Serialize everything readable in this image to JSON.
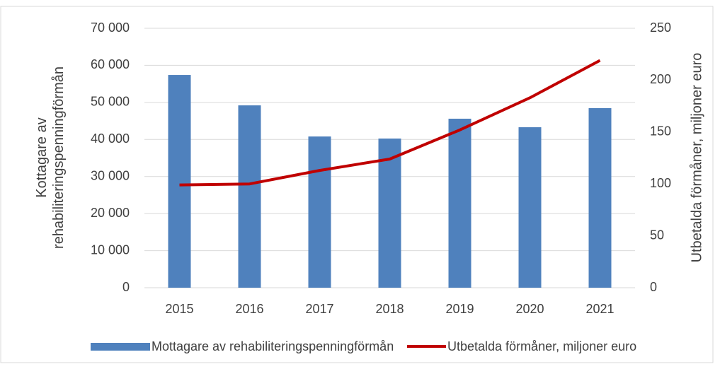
{
  "chart_data": {
    "type": "bar",
    "categories": [
      "2015",
      "2016",
      "2017",
      "2018",
      "2019",
      "2020",
      "2021"
    ],
    "series": [
      {
        "name": "Mottagare av rehabiliteringspenningförmån",
        "type": "bar",
        "color": "#4f81bd",
        "values": [
          57400,
          49200,
          40800,
          40250,
          45600,
          43300,
          48450
        ]
      },
      {
        "name": "Utbetalda förmåner, miljoner euro",
        "type": "line",
        "axis": "y2",
        "color": "#c00000",
        "values": [
          99,
          100,
          113,
          124,
          152,
          183,
          219
        ]
      }
    ],
    "ylabel": [
      "Kottagare av",
      "rehabiliteringspenningförmån"
    ],
    "y2label": "Utbetalda förmåner, miljoner euro",
    "ylim": [
      0,
      70000
    ],
    "yticks": [
      0,
      {
        "value": 10000,
        "label": "10 000"
      },
      {
        "value": 20000,
        "label": "20 000"
      },
      {
        "value": 30000,
        "label": "30 000"
      },
      {
        "value": 40000,
        "label": "40 000"
      },
      {
        "value": 50000,
        "label": "50 000"
      },
      {
        "value": 60000,
        "label": "60 000"
      },
      {
        "value": 70000,
        "label": "70 000"
      }
    ],
    "y2lim": [
      0,
      250
    ],
    "y2ticks": [
      0,
      50,
      100,
      150,
      200,
      250
    ],
    "grid": true,
    "legend": "bottom"
  }
}
